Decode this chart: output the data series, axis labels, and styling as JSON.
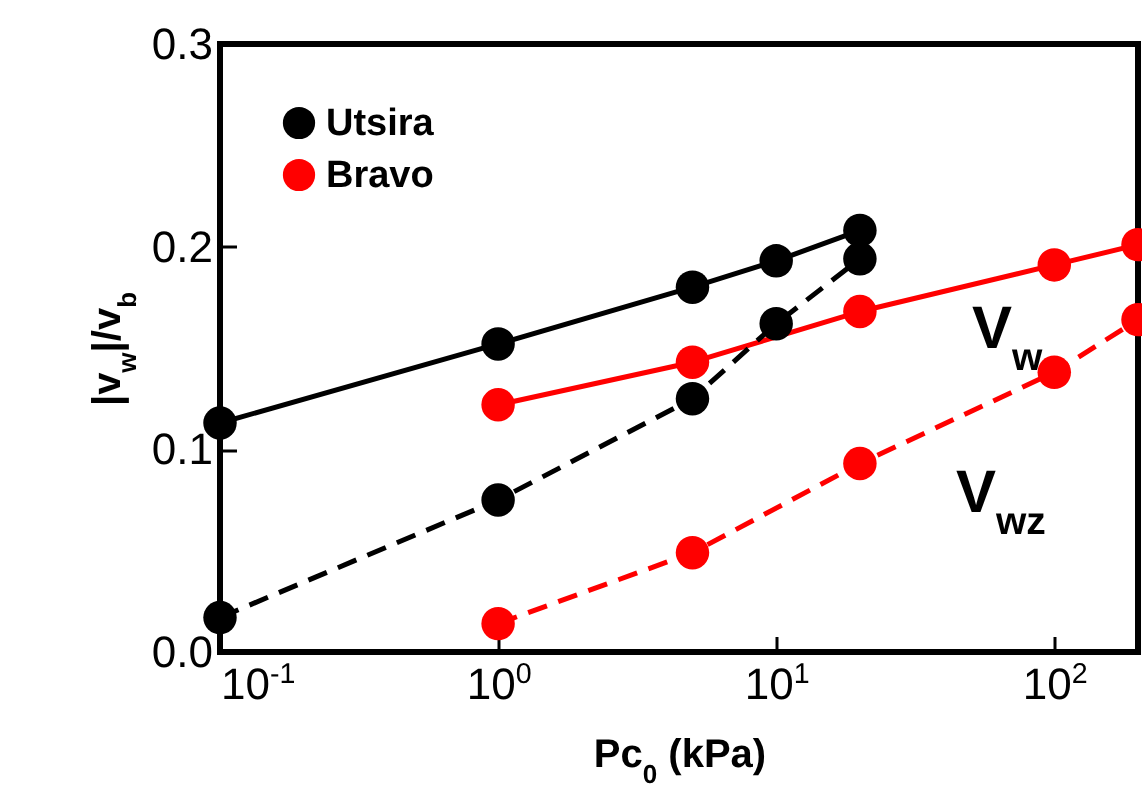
{
  "chart_data": {
    "type": "line",
    "xlabel": "Pc$_{0}$ (kPa)",
    "ylabel": "|v$_{w}$|/v$_{b}$",
    "log": "x",
    "xlim": [
      0.1,
      200
    ],
    "ylim": [
      0,
      0.3
    ],
    "xticks": [
      {
        "value": 0.1,
        "label": "10$^{-1}$"
      },
      {
        "value": 1,
        "label": "10$^{0}$"
      },
      {
        "value": 10,
        "label": "10$^{1}$"
      },
      {
        "value": 100,
        "label": "10$^{2}$"
      }
    ],
    "yticks": [
      {
        "value": 0,
        "label": "0.0"
      },
      0.1,
      0.2,
      0.3
    ],
    "grid": false,
    "legend": "top left",
    "marker": "circle",
    "series": [
      {
        "name": "Utsira",
        "color": "#000000",
        "line_style": "solid",
        "x": [
          0.1,
          1,
          5,
          10,
          20
        ],
        "values": [
          0.113,
          0.152,
          0.18,
          0.193,
          0.208
        ]
      },
      {
        "name": "Bravo",
        "color": "#ff0000",
        "line_style": "solid",
        "x": [
          1,
          5,
          20,
          100,
          200
        ],
        "values": [
          0.122,
          0.143,
          0.168,
          0.191,
          0.201
        ]
      },
      {
        "color": "#000000",
        "line_style": "dashed",
        "x": [
          0.1,
          1,
          5,
          10,
          20
        ],
        "values": [
          0.017,
          0.075,
          0.125,
          0.162,
          0.194
        ]
      },
      {
        "color": "#ff0000",
        "line_style": "dashed",
        "x": [
          1,
          5,
          20,
          100,
          200
        ],
        "values": [
          0.014,
          0.049,
          0.093,
          0.138,
          0.164
        ]
      }
    ],
    "annotations": [
      "V$_{w}$",
      "V$_{wz}$"
    ]
  }
}
